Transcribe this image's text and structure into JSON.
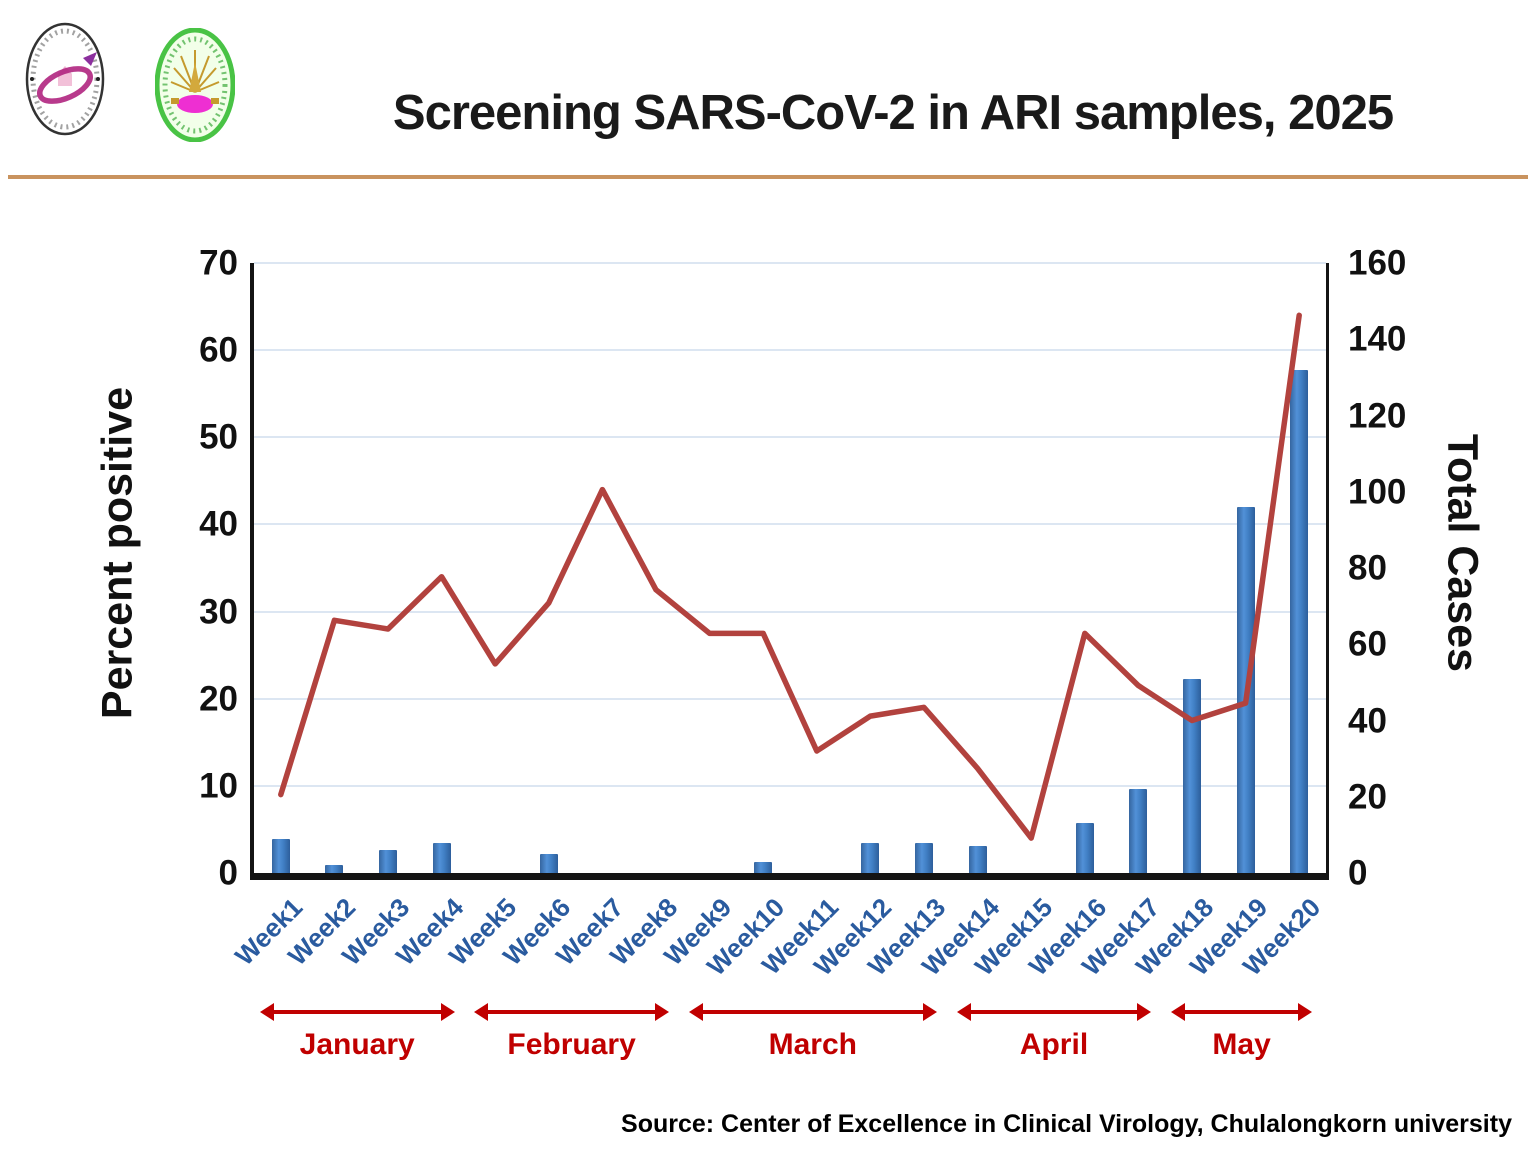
{
  "header": {
    "title": "Screening SARS-CoV-2 in ARI samples, 2025",
    "logos": [
      {
        "name": "center-of-excellence-in-clinical-virology-logo"
      },
      {
        "name": "chulalongkorn-university-faculty-of-medicine-logo"
      }
    ]
  },
  "footer": {
    "source": "Source: Center of Excellence in Clinical Virology, Chulalongkorn university"
  },
  "chart_data": {
    "type": "bar",
    "subtype": "combo-bar-line-dual-axis",
    "categories": [
      "Week1",
      "Week2",
      "Week3",
      "Week4",
      "Week5",
      "Week6",
      "Week7",
      "Week8",
      "Week9",
      "Week10",
      "Week11",
      "Week12",
      "Week13",
      "Week14",
      "Week15",
      "Week16",
      "Week17",
      "Week18",
      "Week19",
      "Week20"
    ],
    "series": [
      {
        "name": "Total Cases",
        "type": "bar",
        "axis": "right",
        "color_hint": "blue",
        "values": [
          9,
          2,
          6,
          8,
          0,
          5,
          0,
          0,
          0,
          3,
          0,
          8,
          8,
          7,
          0,
          13,
          22,
          51,
          96,
          132
        ]
      },
      {
        "name": "Percent positive",
        "type": "line",
        "axis": "left",
        "color_hint": "red",
        "values": [
          9,
          29,
          28,
          34,
          24,
          31,
          44,
          32.5,
          27.5,
          27.5,
          14,
          18,
          19,
          12,
          4,
          27.5,
          21.5,
          17.5,
          19.5,
          64
        ]
      }
    ],
    "left_axis": {
      "label": "Percent positive",
      "min": 0,
      "max": 70,
      "tick_step": 10
    },
    "right_axis": {
      "label": "Total Cases",
      "min": 0,
      "max": 160,
      "tick_step": 20
    },
    "grid": "horizontal gridlines every 10 units of left axis",
    "legend": "none",
    "months": [
      {
        "label": "January",
        "from_week": 1,
        "to_week": 4
      },
      {
        "label": "February",
        "from_week": 5,
        "to_week": 8
      },
      {
        "label": "March",
        "from_week": 9,
        "to_week": 13
      },
      {
        "label": "April",
        "from_week": 14,
        "to_week": 17
      },
      {
        "label": "May",
        "from_week": 18,
        "to_week": 20
      }
    ],
    "colors": {
      "bar": "#3f7dc4",
      "line": "#b2423e",
      "gridline": "#dce6f2",
      "week_label": "#2a5b9f",
      "month_label": "#c00000",
      "divider": "#c9935f"
    }
  }
}
